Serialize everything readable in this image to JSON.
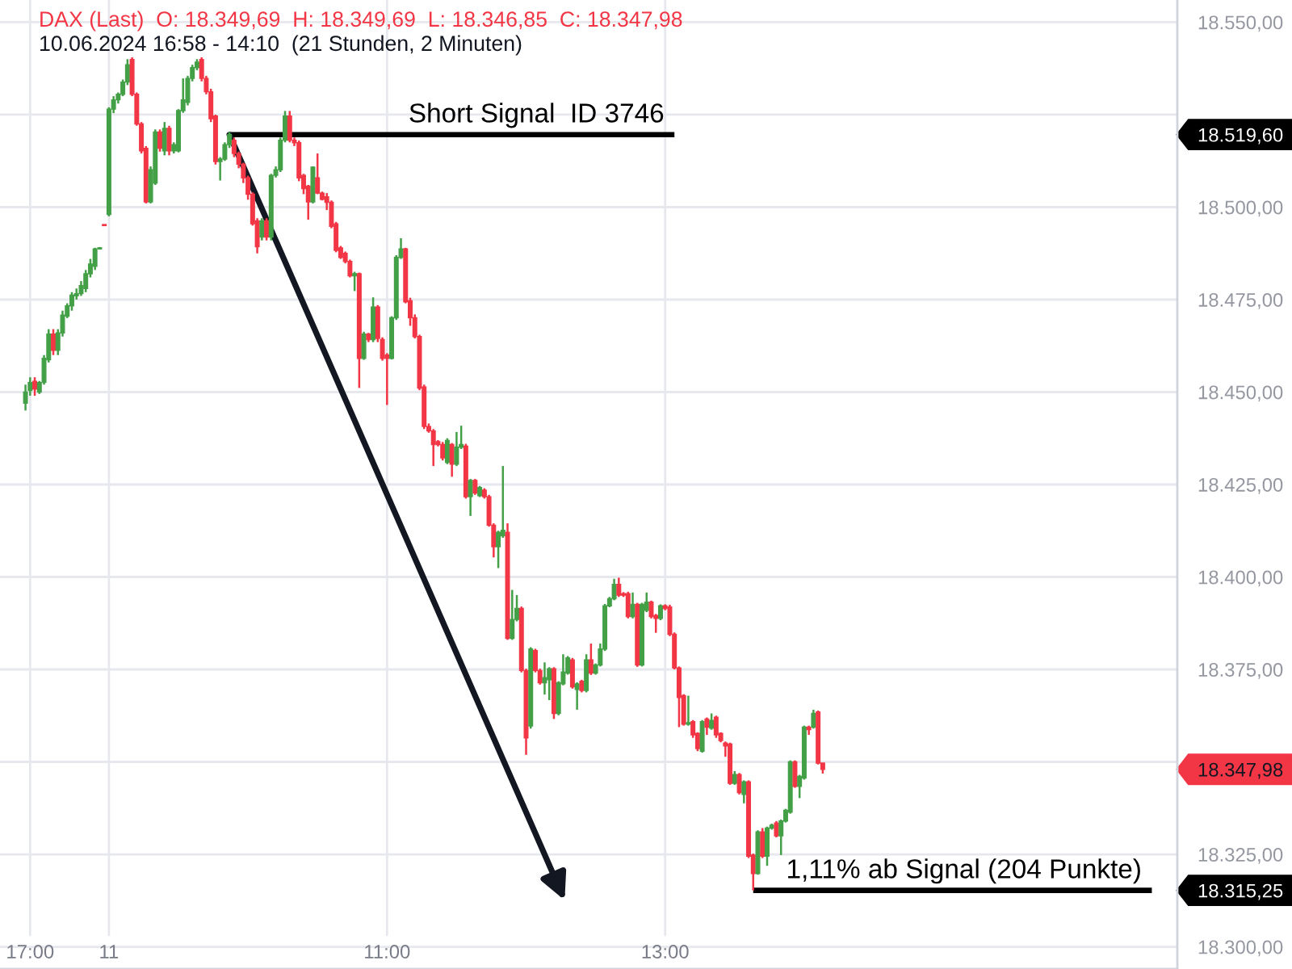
{
  "chart_data": {
    "type": "candlestick",
    "title": "DAX (Last)  O: 18.349,69  H: 18.349,69  L: 18.346,85  C: 18.347,98",
    "subtitle": "10.06.2024 16:58 - 14:10  (21 Stunden, 2 Minuten)",
    "categories": [
      null,
      "17:00",
      null,
      null,
      null,
      null,
      null,
      null,
      null,
      null,
      null,
      null,
      null,
      null,
      null,
      null,
      null,
      null,
      "11",
      null,
      null,
      null,
      null,
      null,
      null,
      null,
      null,
      null,
      null,
      null,
      null,
      null,
      null,
      null,
      null,
      null,
      null,
      null,
      null,
      null,
      null,
      null,
      null,
      null,
      null,
      null,
      null,
      null,
      null,
      null,
      null,
      null,
      null,
      null,
      null,
      null,
      null,
      null,
      null,
      null,
      null,
      null,
      null,
      null,
      null,
      null,
      null,
      null,
      null,
      null,
      null,
      null,
      null,
      null,
      null,
      null,
      null,
      null,
      "11:00",
      null,
      null,
      null,
      null,
      null,
      null,
      null,
      null,
      null,
      null,
      null,
      null,
      null,
      null,
      null,
      null,
      null,
      null,
      null,
      null,
      null,
      null,
      null,
      null,
      null,
      null,
      null,
      null,
      null,
      null,
      null,
      null,
      null,
      null,
      null,
      null,
      null,
      null,
      null,
      null,
      null,
      null,
      null,
      null,
      null,
      null,
      null,
      null,
      null,
      null,
      null,
      null,
      null,
      null,
      null,
      null,
      null,
      null,
      null,
      "13:00",
      null,
      null,
      null,
      null,
      null,
      null,
      null,
      null,
      null,
      null,
      null,
      null,
      null,
      null,
      null,
      null,
      null,
      null,
      null,
      null,
      null,
      null,
      null,
      null,
      null,
      null,
      null,
      null,
      null,
      null,
      null,
      null,
      null,
      null,
      null,
      null,
      null,
      null,
      null,
      null,
      null,
      null,
      null,
      null,
      null,
      null,
      null,
      null,
      null,
      null,
      null,
      null,
      null,
      null,
      null,
      null,
      null,
      null,
      null,
      null,
      null,
      null,
      null,
      null,
      null,
      null,
      null,
      null,
      null,
      null,
      null,
      null,
      null,
      null,
      null,
      null,
      null,
      null,
      null,
      null,
      null,
      null,
      null,
      null,
      null,
      null,
      null,
      null,
      null,
      null,
      null,
      null,
      null,
      null,
      null,
      null,
      null,
      null,
      null,
      null,
      null,
      null,
      null,
      null,
      null,
      null,
      null,
      null,
      null,
      null
    ],
    "ohlc": [
      [
        18447,
        18452,
        18445,
        18450
      ],
      [
        18450.4,
        18454,
        18449,
        18452.6
      ],
      [
        18452.9,
        18454,
        18449,
        18450.8
      ],
      [
        18450,
        18453,
        18449.5,
        18452.6
      ],
      [
        18452.6,
        18460,
        18452,
        18459.1
      ],
      [
        18458.7,
        18467,
        18458,
        18465.7
      ],
      [
        18465.7,
        18467,
        18460,
        18461.3
      ],
      [
        18461.3,
        18467,
        18460,
        18466
      ],
      [
        18466,
        18472,
        18465,
        18470.8
      ],
      [
        18470.5,
        18474,
        18470,
        18473.3
      ],
      [
        18473.3,
        18477,
        18472,
        18476.2
      ],
      [
        18476,
        18478,
        18475,
        18476.6
      ],
      [
        18476.6,
        18480,
        18476,
        18478.8
      ],
      [
        18478,
        18483,
        18477,
        18482
      ],
      [
        18482,
        18486,
        18481,
        18484.6
      ],
      [
        18484,
        18489,
        18483,
        18488.7
      ],
      [
        18488.7,
        18489.2,
        18488.5,
        18489
      ],
      [
        18495.3,
        18495.3,
        18495,
        18495
      ],
      [
        18498,
        18527,
        18497.5,
        18526.5
      ],
      [
        18526.5,
        18530,
        18525.4,
        18529
      ],
      [
        18529,
        18531,
        18528,
        18530.5
      ],
      [
        18530.5,
        18534.5,
        18530,
        18533.8
      ],
      [
        18533.8,
        18540,
        18533,
        18538.5
      ],
      [
        18539.9,
        18540.5,
        18530,
        18530.5
      ],
      [
        18530.5,
        18531,
        18522,
        18522.5
      ],
      [
        18522.5,
        18523,
        18514.5,
        18515.2
      ],
      [
        18515.9,
        18516.5,
        18501,
        18501.4
      ],
      [
        18501.4,
        18511,
        18501,
        18510.1
      ],
      [
        18506.5,
        18521,
        18506,
        18520.3
      ],
      [
        18520.3,
        18521,
        18515,
        18515.9
      ],
      [
        18515.2,
        18523,
        18514,
        18521.3
      ],
      [
        18521.3,
        18522,
        18514,
        18515.2
      ],
      [
        18515.2,
        18517.5,
        18514.5,
        18516.9
      ],
      [
        18515.2,
        18526.5,
        18514.8,
        18526.1
      ],
      [
        18526.1,
        18534.8,
        18525.5,
        18529
      ],
      [
        18528.3,
        18535.5,
        18527.5,
        18534.8
      ],
      [
        18534.8,
        18538.5,
        18534,
        18537.7
      ],
      [
        18537.7,
        18540,
        18537,
        18539.2
      ],
      [
        18539.9,
        18540.5,
        18534,
        18534.8
      ],
      [
        18534.8,
        18535.5,
        18530.5,
        18531.2
      ],
      [
        18531.2,
        18532,
        18523,
        18523.9
      ],
      [
        18524.6,
        18525,
        18511.5,
        18512.3
      ],
      [
        18512.3,
        18513.5,
        18507.2,
        18513
      ],
      [
        18513,
        18517.5,
        18512.5,
        18516.9
      ],
      [
        18516.9,
        18520.3,
        18516,
        18519.6
      ],
      [
        18518.1,
        18518.8,
        18513.5,
        18514.5
      ],
      [
        18514.5,
        18515,
        18510.5,
        18511.6
      ],
      [
        18511.6,
        18512,
        18506.5,
        18507.9
      ],
      [
        18507.9,
        18508.5,
        18502,
        18503.5
      ],
      [
        18503.5,
        18504,
        18495,
        18495.5
      ],
      [
        18496.3,
        18497,
        18487.5,
        18489.3
      ],
      [
        18491.9,
        18497,
        18491,
        18496.3
      ],
      [
        18496.3,
        18497,
        18491,
        18491.9
      ],
      [
        18491.9,
        18509,
        18491,
        18508.6
      ],
      [
        18508.6,
        18511,
        18508,
        18510.1
      ],
      [
        18510.1,
        18518.8,
        18509.5,
        18518.1
      ],
      [
        18518.1,
        18526,
        18517.5,
        18524.6
      ],
      [
        18524.6,
        18526,
        18517.5,
        18518.1
      ],
      [
        18518.1,
        18518.8,
        18516.5,
        18517.4
      ],
      [
        18517.4,
        18518,
        18507,
        18507.9
      ],
      [
        18508.6,
        18509,
        18503.5,
        18505
      ],
      [
        18505.7,
        18506,
        18496.6,
        18501.4
      ],
      [
        18501.4,
        18511,
        18501,
        18510.8
      ],
      [
        18507.9,
        18514.5,
        18503.5,
        18503.8
      ],
      [
        18503.8,
        18504.2,
        18501.8,
        18502.1
      ],
      [
        18502.8,
        18503.8,
        18499.2,
        18501.3
      ],
      [
        18501.3,
        18501.8,
        18494.3,
        18494.8
      ],
      [
        18495.5,
        18496,
        18487.8,
        18488.3
      ],
      [
        18489,
        18489.5,
        18486,
        18486.4
      ],
      [
        18487.5,
        18488,
        18484.8,
        18485.3
      ],
      [
        18485.3,
        18485.8,
        18481,
        18481.4
      ],
      [
        18481.4,
        18482.5,
        18477.3,
        18482
      ],
      [
        18482,
        18482.3,
        18451.1,
        18459.1
      ],
      [
        18459.1,
        18466.3,
        18458.7,
        18465.7
      ],
      [
        18465.7,
        18466,
        18463.5,
        18464.2
      ],
      [
        18464.2,
        18475.6,
        18463.5,
        18473
      ],
      [
        18473,
        18473.5,
        18463.5,
        18464.5
      ],
      [
        18464.2,
        18464.8,
        18458.5,
        18459.1
      ],
      [
        18460,
        18460.5,
        18446.5,
        18459.1
      ],
      [
        18459.1,
        18470.5,
        18458.8,
        18470.1
      ],
      [
        18470.1,
        18487,
        18469.5,
        18486.4
      ],
      [
        18486.4,
        18491.6,
        18486,
        18488.7
      ],
      [
        18488.7,
        18489,
        18474,
        18474.4
      ],
      [
        18474.7,
        18475.5,
        18467.9,
        18470.1
      ],
      [
        18470.1,
        18471,
        18464.5,
        18465
      ],
      [
        18465,
        18465.5,
        18450.5,
        18451.1
      ],
      [
        18451.4,
        18452,
        18440,
        18440.7
      ],
      [
        18440.7,
        18441.5,
        18439,
        18439.5
      ],
      [
        18439.5,
        18440,
        18430,
        18435.8
      ],
      [
        18436.6,
        18437,
        18435.3,
        18435.8
      ],
      [
        18435.8,
        18436.5,
        18431.5,
        18432.2
      ],
      [
        18431,
        18437.5,
        18430.5,
        18436.9
      ],
      [
        18435.8,
        18436.2,
        18427.1,
        18430.5
      ],
      [
        18430.5,
        18439.2,
        18430,
        18435.1
      ],
      [
        18435.1,
        18440.9,
        18434.6,
        18435.8
      ],
      [
        18435.4,
        18436,
        18421.2,
        18421.7
      ],
      [
        18421.7,
        18426.5,
        18416.5,
        18426.1
      ],
      [
        18426.1,
        18426.5,
        18422.2,
        18422.7
      ],
      [
        18422,
        18424.6,
        18421.6,
        18424.2
      ],
      [
        18423.5,
        18424,
        18421.2,
        18421.7
      ],
      [
        18421.7,
        18422.2,
        18413.6,
        18414
      ],
      [
        18414,
        18414.5,
        18405.3,
        18408.2
      ],
      [
        18408.2,
        18412.5,
        18402.4,
        18412.1
      ],
      [
        18411.1,
        18430,
        18410.6,
        18412.6
      ],
      [
        18412.1,
        18414.5,
        18383,
        18383.4
      ],
      [
        18383.4,
        18396.5,
        18383,
        18388.5
      ],
      [
        18388.5,
        18395.1,
        18388,
        18391.5
      ],
      [
        18391.5,
        18392,
        18374.2,
        18374.7
      ],
      [
        18374.7,
        18375.2,
        18351.9,
        18356.5
      ],
      [
        18359.7,
        18381,
        18359,
        18380.5
      ],
      [
        18380.1,
        18380.6,
        18374.2,
        18374.7
      ],
      [
        18374.7,
        18375.2,
        18370.9,
        18371.4
      ],
      [
        18371.4,
        18376.9,
        18368.2,
        18372.8
      ],
      [
        18372.2,
        18375.6,
        18366.7,
        18375.2
      ],
      [
        18375.2,
        18375.6,
        18361.6,
        18363.1
      ],
      [
        18363.1,
        18371.8,
        18362.6,
        18371.4
      ],
      [
        18371.1,
        18379.1,
        18370.7,
        18374.3
      ],
      [
        18374,
        18378.6,
        18373.6,
        18378.1
      ],
      [
        18377.6,
        18378.1,
        18369.8,
        18370.3
      ],
      [
        18369.6,
        18371.5,
        18364.1,
        18371.1
      ],
      [
        18371.8,
        18372.2,
        18368.8,
        18369.3
      ],
      [
        18369.3,
        18379.1,
        18368.8,
        18377.6
      ],
      [
        18377.6,
        18382,
        18373.5,
        18374
      ],
      [
        18374,
        18376.6,
        18373.6,
        18376.2
      ],
      [
        18376.2,
        18382,
        18375.8,
        18380.5
      ],
      [
        18380.5,
        18392.7,
        18380,
        18392.2
      ],
      [
        18392.2,
        18394.6,
        18391.8,
        18394.1
      ],
      [
        18394.1,
        18399.5,
        18393.7,
        18398
      ],
      [
        18398,
        18399.8,
        18394.6,
        18395.1
      ],
      [
        18395.5,
        18395.9,
        18394.6,
        18395.1
      ],
      [
        18395.5,
        18396,
        18388.8,
        18389.3
      ],
      [
        18389.3,
        18395.8,
        18388.8,
        18392.6
      ],
      [
        18392.6,
        18393,
        18375.7,
        18376.2
      ],
      [
        18376.2,
        18393,
        18375.8,
        18392.6
      ],
      [
        18391,
        18395.8,
        18390.5,
        18393.2
      ],
      [
        18393.2,
        18393.6,
        18388.8,
        18389.3
      ],
      [
        18389.6,
        18390,
        18384.9,
        18388.8
      ],
      [
        18388.8,
        18392.6,
        18388.3,
        18392.2
      ],
      [
        18392.2,
        18392.6,
        18391,
        18391.5
      ],
      [
        18391.9,
        18392.5,
        18384,
        18384.5
      ],
      [
        18384.5,
        18385,
        18375,
        18375.4
      ],
      [
        18375.4,
        18375.8,
        18359.4,
        18367.4
      ],
      [
        18367.9,
        18368.3,
        18359.8,
        18360.2
      ],
      [
        18360.2,
        18367.9,
        18359.8,
        18360.6
      ],
      [
        18360.9,
        18361.3,
        18356.5,
        18357.3
      ],
      [
        18357.7,
        18358,
        18352.9,
        18353.6
      ],
      [
        18352.9,
        18361.3,
        18352.5,
        18360.9
      ],
      [
        18361.6,
        18362,
        18357.3,
        18359.4
      ],
      [
        18359.1,
        18363.1,
        18358.7,
        18361.2
      ],
      [
        18362.1,
        18362.5,
        18356.5,
        18357.3
      ],
      [
        18357.7,
        18358,
        18355.3,
        18355.8
      ],
      [
        18355.1,
        18355.5,
        18351.4,
        18354.3
      ],
      [
        18354.8,
        18355.2,
        18343.8,
        18344.2
      ],
      [
        18344.2,
        18347.5,
        18343.8,
        18346.6
      ],
      [
        18346.6,
        18347,
        18341.2,
        18341.7
      ],
      [
        18341.2,
        18345,
        18338.8,
        18344.6
      ],
      [
        18344.6,
        18345,
        18324,
        18324.5
      ],
      [
        18324.8,
        18325.2,
        18315.25,
        18319.8
      ],
      [
        18319.8,
        18331.5,
        18319.5,
        18331.1
      ],
      [
        18331.1,
        18332.1,
        18324,
        18324.5
      ],
      [
        18324.5,
        18332.5,
        18321.9,
        18332.1
      ],
      [
        18332.1,
        18333.3,
        18331.7,
        18332.9
      ],
      [
        18333.5,
        18334,
        18329.6,
        18330
      ],
      [
        18330,
        18334.4,
        18324.8,
        18334
      ],
      [
        18334,
        18337.3,
        18333.6,
        18336.9
      ],
      [
        18336.4,
        18350.4,
        18336,
        18350
      ],
      [
        18350,
        18350.4,
        18343,
        18343.4
      ],
      [
        18343.4,
        18346.5,
        18340.2,
        18346.1
      ],
      [
        18345.6,
        18359.8,
        18345.2,
        18359.4
      ],
      [
        18359.4,
        18359.8,
        18357.3,
        18358.7
      ],
      [
        18359.4,
        18364.1,
        18359,
        18363.1
      ],
      [
        18363.5,
        18363.9,
        18349.3,
        18349.69
      ],
      [
        18349.69,
        18349.69,
        18346.85,
        18347.98
      ],
      null,
      null,
      null,
      null,
      null,
      null,
      null,
      null,
      null,
      null,
      null,
      null,
      null,
      null,
      null,
      null,
      null,
      null,
      null,
      null,
      null,
      null,
      null,
      null,
      null,
      null,
      null,
      null,
      null,
      null,
      null,
      null,
      null,
      null,
      null,
      null,
      null,
      null,
      null,
      null,
      null,
      null,
      null,
      null,
      null,
      null,
      null,
      null,
      null,
      null,
      null,
      null,
      null,
      null,
      null,
      null,
      null,
      null,
      null,
      null,
      null,
      null,
      null,
      null,
      null,
      null,
      null,
      null,
      null,
      null,
      null,
      null,
      null,
      null,
      null,
      null
    ],
    "series": [
      {
        "type": "line",
        "name": "Short Signal  ID 3746",
        "color": "#000000",
        "values": [
          null,
          null,
          null,
          null,
          null,
          null,
          null,
          null,
          null,
          null,
          null,
          null,
          null,
          null,
          null,
          null,
          null,
          null,
          null,
          null,
          null,
          null,
          null,
          null,
          null,
          null,
          null,
          null,
          null,
          null,
          null,
          null,
          null,
          null,
          null,
          null,
          null,
          null,
          null,
          null,
          null,
          null,
          null,
          null,
          18519.6,
          18519.6,
          18519.6,
          18519.6,
          18519.6,
          18519.6,
          18519.6,
          18519.6,
          18519.6,
          18519.6,
          18519.6,
          18519.6,
          18519.6,
          18519.6,
          18519.6,
          18519.6,
          18519.6,
          18519.6,
          18519.6,
          18519.6,
          18519.6,
          18519.6,
          18519.6,
          18519.6,
          18519.6,
          18519.6,
          18519.6,
          18519.6,
          18519.6,
          18519.6,
          18519.6,
          18519.6,
          18519.6,
          18519.6,
          18519.6,
          18519.6,
          18519.6,
          18519.6,
          18519.6,
          18519.6,
          18519.6,
          18519.6,
          18519.6,
          18519.6,
          18519.6,
          18519.6,
          18519.6,
          18519.6,
          18519.6,
          18519.6,
          18519.6,
          18519.6,
          18519.6,
          18519.6,
          18519.6,
          18519.6,
          18519.6,
          18519.6,
          18519.6,
          18519.6,
          18519.6,
          18519.6,
          18519.6,
          18519.6,
          18519.6,
          18519.6,
          18519.6,
          18519.6,
          18519.6,
          18519.6,
          18519.6,
          18519.6,
          18519.6,
          18519.6,
          18519.6,
          18519.6,
          18519.6,
          18519.6,
          18519.6,
          18519.6,
          18519.6,
          18519.6,
          18519.6,
          18519.6,
          18519.6,
          18519.6,
          18519.6,
          18519.6,
          18519.6,
          18519.6,
          18519.6,
          18519.6,
          18519.6,
          18519.6,
          18519.6,
          18519.6,
          18519.6,
          null,
          null,
          null,
          null,
          null,
          null,
          null,
          null,
          null,
          null,
          null,
          null,
          null,
          null,
          null,
          null,
          null,
          null,
          null,
          null,
          null,
          null,
          null,
          null,
          null,
          null,
          null,
          null,
          null,
          null,
          null,
          null,
          null,
          null,
          null,
          null,
          null,
          null,
          null,
          null,
          null,
          null,
          null,
          null,
          null,
          null,
          null,
          null,
          null,
          null,
          null,
          null,
          null,
          null,
          null,
          null,
          null,
          null,
          null,
          null,
          null,
          null,
          null,
          null,
          null,
          null,
          null,
          null,
          null,
          null,
          null,
          null,
          null,
          null,
          null,
          null,
          null,
          null,
          null,
          null,
          null,
          null,
          null,
          null,
          null,
          null,
          null,
          null,
          null,
          null,
          null,
          null,
          null,
          null,
          null,
          null,
          null,
          null,
          null,
          null,
          null,
          null,
          null,
          null,
          null,
          null,
          null,
          null
        ]
      },
      {
        "type": "line",
        "name": "1,11% ab Signal (204 Punkte)",
        "color": "#000000",
        "values": [
          null,
          null,
          null,
          null,
          null,
          null,
          null,
          null,
          null,
          null,
          null,
          null,
          null,
          null,
          null,
          null,
          null,
          null,
          null,
          null,
          null,
          null,
          null,
          null,
          null,
          null,
          null,
          null,
          null,
          null,
          null,
          null,
          null,
          null,
          null,
          null,
          null,
          null,
          null,
          null,
          null,
          null,
          null,
          null,
          null,
          null,
          null,
          null,
          null,
          null,
          null,
          null,
          null,
          null,
          null,
          null,
          null,
          null,
          null,
          null,
          null,
          null,
          null,
          null,
          null,
          null,
          null,
          null,
          null,
          null,
          null,
          null,
          null,
          null,
          null,
          null,
          null,
          null,
          null,
          null,
          null,
          null,
          null,
          null,
          null,
          null,
          null,
          null,
          null,
          null,
          null,
          null,
          null,
          null,
          null,
          null,
          null,
          null,
          null,
          null,
          null,
          null,
          null,
          null,
          null,
          null,
          null,
          null,
          null,
          null,
          null,
          null,
          null,
          null,
          null,
          null,
          null,
          null,
          null,
          null,
          null,
          null,
          null,
          null,
          null,
          null,
          null,
          null,
          null,
          null,
          null,
          null,
          null,
          null,
          null,
          null,
          null,
          null,
          null,
          null,
          null,
          null,
          null,
          null,
          null,
          null,
          null,
          null,
          null,
          null,
          null,
          null,
          null,
          null,
          null,
          null,
          null,
          18315.25,
          18315.25,
          18315.25,
          18315.25,
          18315.25,
          18315.25,
          18315.25,
          18315.25,
          18315.25,
          18315.25,
          18315.25,
          18315.25,
          18315.25,
          18315.25,
          18315.25,
          18315.25,
          18315.25,
          18315.25,
          18315.25,
          18315.25,
          18315.25,
          18315.25,
          18315.25,
          18315.25,
          18315.25,
          18315.25,
          18315.25,
          18315.25,
          18315.25,
          18315.25,
          18315.25,
          18315.25,
          18315.25,
          18315.25,
          18315.25,
          18315.25,
          18315.25,
          18315.25,
          18315.25,
          18315.25,
          18315.25,
          18315.25,
          18315.25,
          18315.25,
          18315.25,
          18315.25,
          18315.25,
          18315.25,
          18315.25,
          18315.25,
          18315.25,
          18315.25,
          18315.25,
          18315.25,
          18315.25,
          18315.25,
          18315.25,
          18315.25,
          18315.25,
          18315.25,
          18315.25,
          18315.25,
          18315.25,
          18315.25,
          18315.25,
          18315.25,
          18315.25,
          18315.25,
          18315.25,
          18315.25,
          18315.25,
          18315.25,
          18315.25,
          18315.25,
          18315.25,
          18315.25,
          18315.25,
          18315.25,
          18315.25,
          18315.25,
          18315.25,
          18315.25,
          18315.25,
          18315.25,
          18315.25,
          18315.25,
          18315.25,
          null,
          null,
          null,
          null,
          null
        ]
      }
    ],
    "ylim": [
      18294,
      18556
    ],
    "yticks": [
      {
        "value": 18300,
        "label": "18.300,00"
      },
      {
        "value": 18315.25,
        "label": "18.315,25"
      },
      {
        "value": 18325,
        "label": "18.325,00"
      },
      {
        "value": 18347.98,
        "label": "18.347,98"
      },
      {
        "value": 18350,
        "label": null
      },
      {
        "value": 18375,
        "label": "18.375,00"
      },
      {
        "value": 18400,
        "label": "18.400,00"
      },
      {
        "value": 18425,
        "label": "18.425,00"
      },
      {
        "value": 18450,
        "label": "18.450,00"
      },
      {
        "value": 18475,
        "label": "18.475,00"
      },
      {
        "value": 18500,
        "label": "18.500,00"
      },
      {
        "value": 18519.6,
        "label": "18.519,60"
      },
      {
        "value": 18525,
        "label": null
      },
      {
        "value": 18550,
        "label": "18.550,00"
      }
    ],
    "grid": true
  }
}
